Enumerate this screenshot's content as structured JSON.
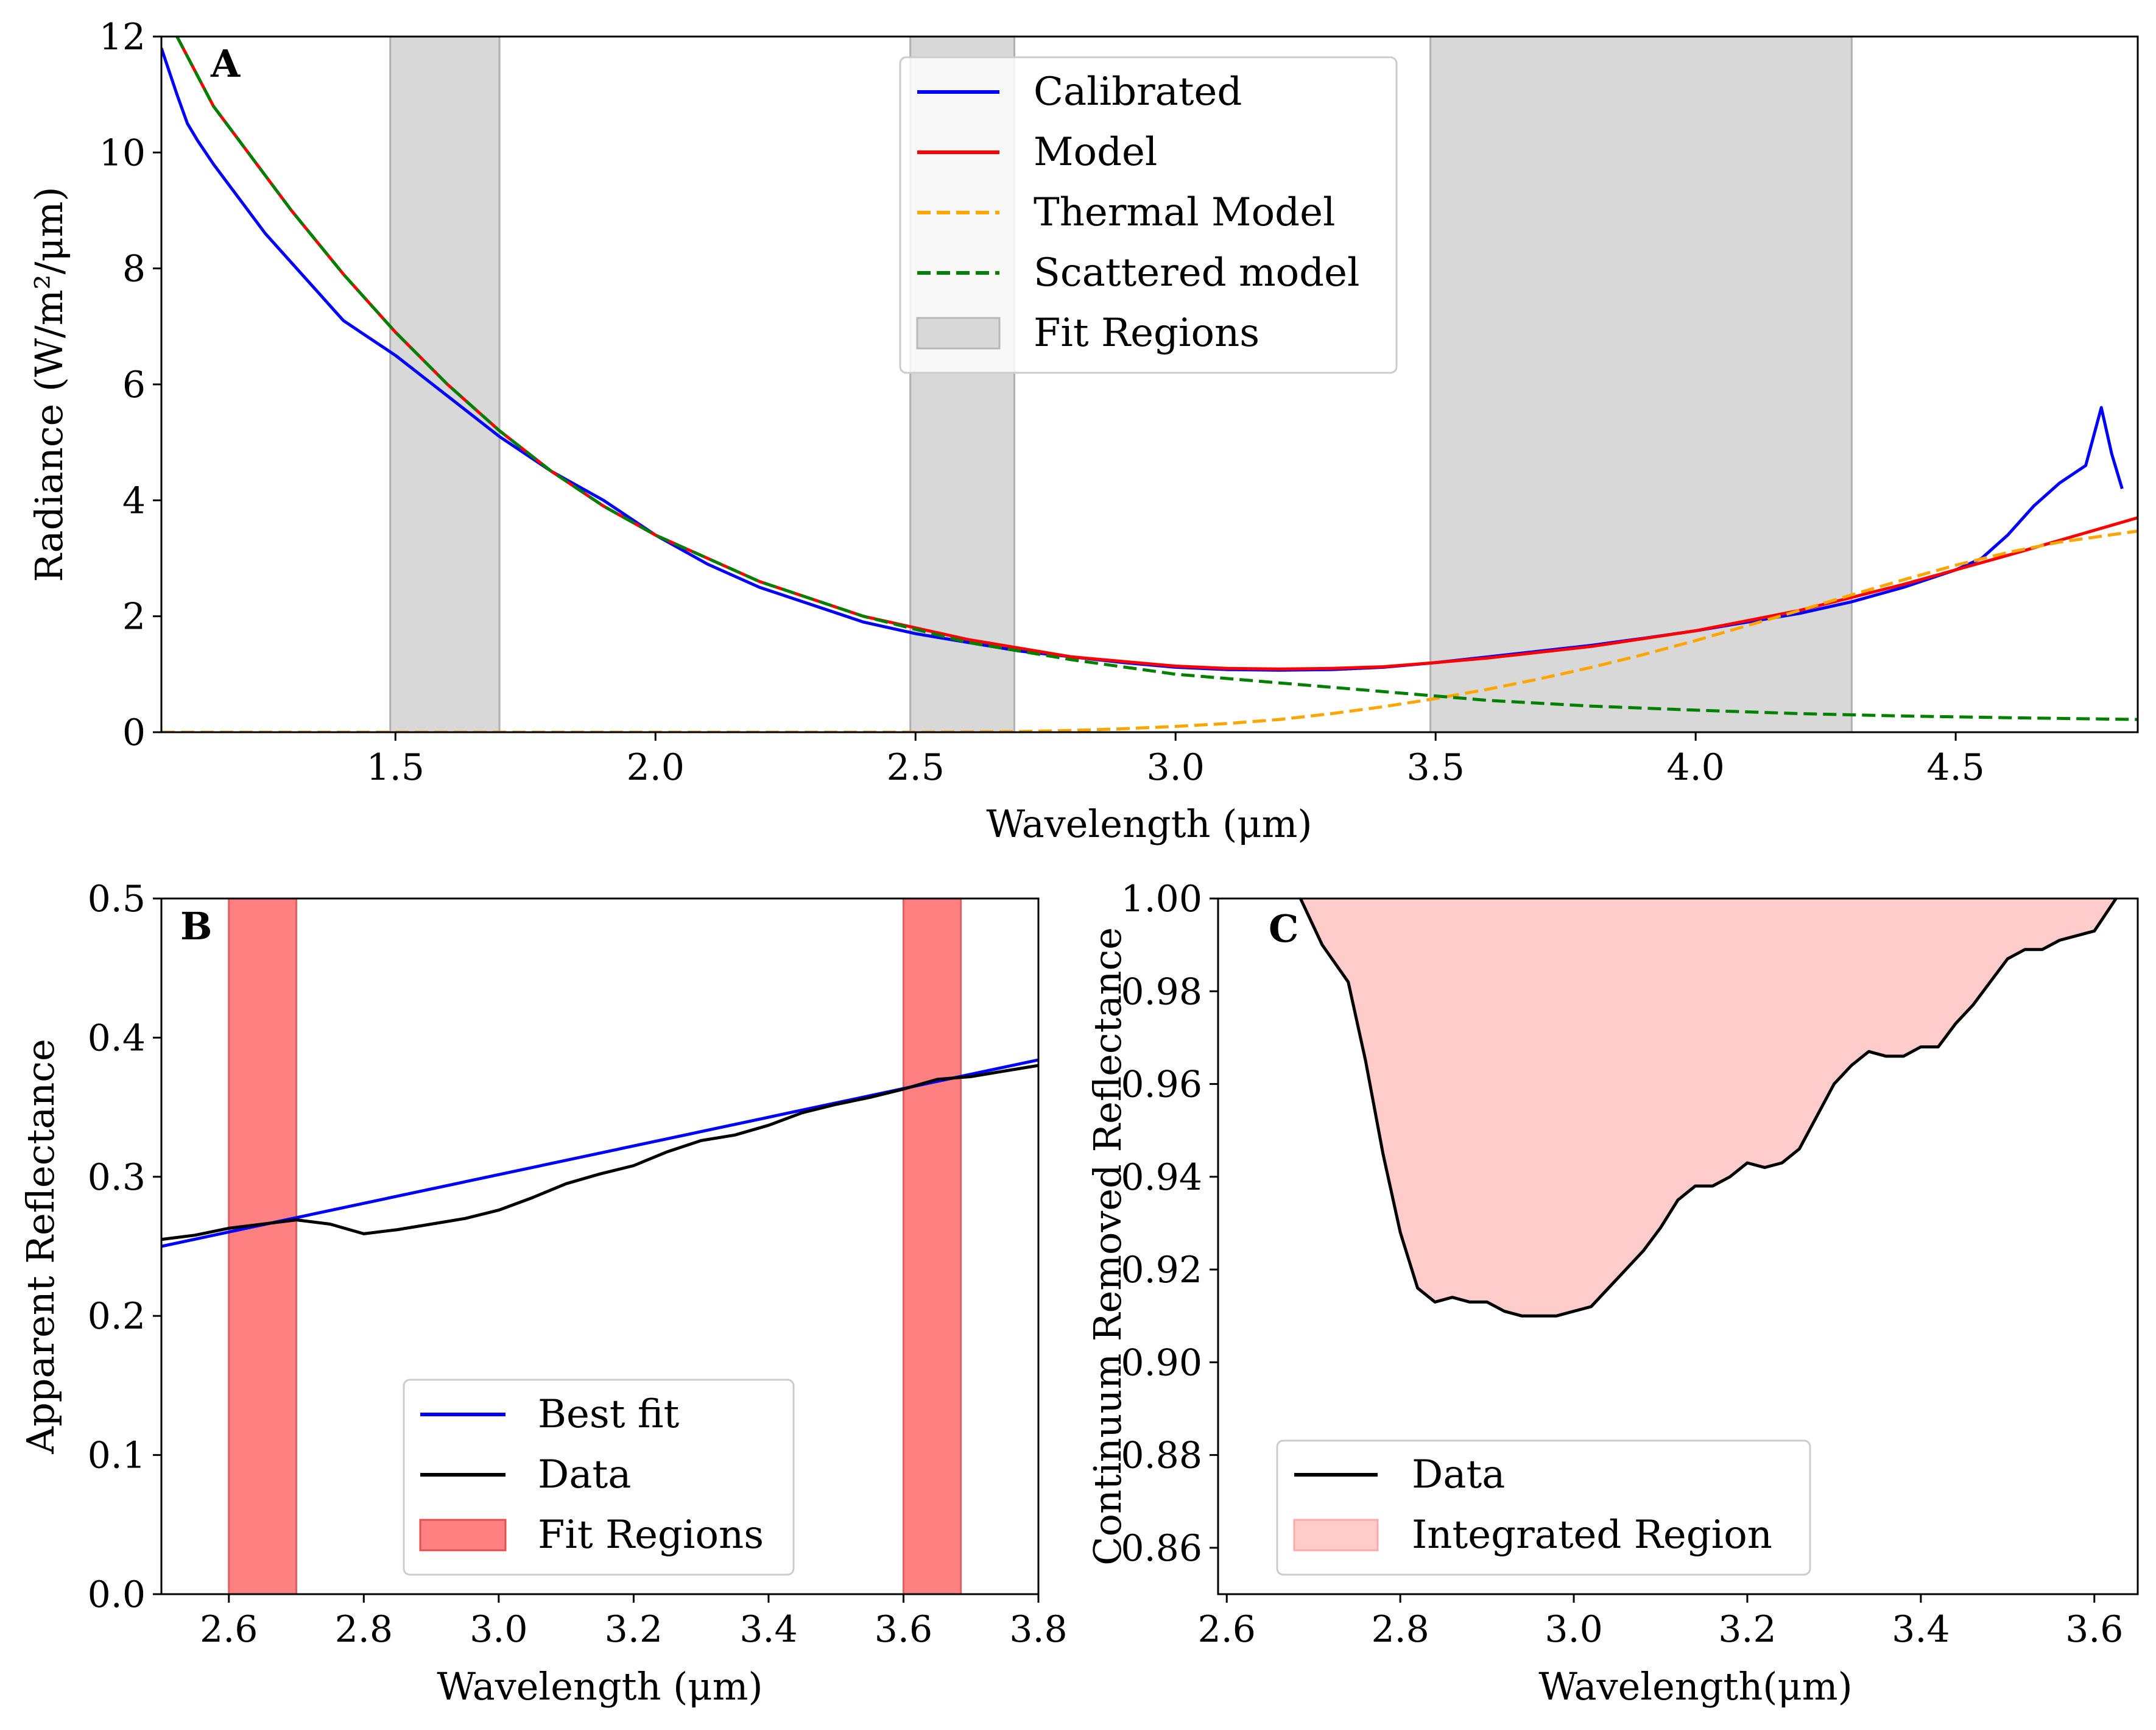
{
  "chart_data": [
    {
      "panel_label": "A",
      "type": "line",
      "xlabel": "Wavelength (μm)",
      "ylabel": "Radiance (W/m²/μm)",
      "xlim": [
        1.05,
        4.85
      ],
      "ylim": [
        0,
        12
      ],
      "xticks": [
        1.5,
        2.0,
        2.5,
        3.0,
        3.5,
        4.0,
        4.5
      ],
      "xtick_labels": [
        "1.5",
        "2.0",
        "2.5",
        "3.0",
        "3.5",
        "4.0",
        "4.5"
      ],
      "yticks": [
        0,
        2,
        4,
        6,
        8,
        10,
        12
      ],
      "ytick_labels": [
        "0",
        "2",
        "4",
        "6",
        "8",
        "10",
        "12"
      ],
      "legend_position": "top-center",
      "legend": [
        "Calibrated",
        "Model",
        "Thermal Model",
        "Scattered model",
        "Fit Regions"
      ],
      "fit_regions": [
        [
          1.49,
          1.7
        ],
        [
          2.49,
          2.69
        ],
        [
          3.49,
          4.3
        ]
      ],
      "series": [
        {
          "name": "Calibrated",
          "color": "#0000ff",
          "style": "solid",
          "x": [
            1.05,
            1.08,
            1.1,
            1.12,
            1.15,
            1.2,
            1.25,
            1.3,
            1.35,
            1.38,
            1.4,
            1.45,
            1.5,
            1.6,
            1.7,
            1.8,
            1.9,
            2.0,
            2.1,
            2.2,
            2.3,
            2.4,
            2.5,
            2.6,
            2.7,
            2.8,
            2.9,
            3.0,
            3.1,
            3.2,
            3.3,
            3.4,
            3.5,
            3.6,
            3.7,
            3.8,
            3.9,
            4.0,
            4.1,
            4.2,
            4.3,
            4.4,
            4.5,
            4.55,
            4.6,
            4.65,
            4.7,
            4.75,
            4.78,
            4.8,
            4.82
          ],
          "y": [
            11.8,
            11.0,
            10.5,
            10.2,
            9.8,
            9.2,
            8.6,
            8.1,
            7.6,
            7.3,
            7.1,
            6.8,
            6.5,
            5.8,
            5.1,
            4.5,
            4.0,
            3.4,
            2.9,
            2.5,
            2.2,
            1.9,
            1.7,
            1.55,
            1.4,
            1.3,
            1.2,
            1.12,
            1.08,
            1.07,
            1.08,
            1.12,
            1.2,
            1.3,
            1.4,
            1.5,
            1.62,
            1.75,
            1.9,
            2.05,
            2.25,
            2.5,
            2.8,
            3.0,
            3.4,
            3.9,
            4.3,
            4.6,
            5.6,
            4.8,
            4.2
          ]
        },
        {
          "name": "Model",
          "color": "#ff0000",
          "style": "solid",
          "x": [
            1.08,
            1.15,
            1.2,
            1.3,
            1.4,
            1.5,
            1.6,
            1.7,
            1.8,
            1.9,
            2.0,
            2.2,
            2.4,
            2.6,
            2.8,
            3.0,
            3.1,
            3.2,
            3.3,
            3.4,
            3.5,
            3.6,
            3.8,
            4.0,
            4.2,
            4.4,
            4.6,
            4.85
          ],
          "y": [
            12.0,
            10.8,
            10.2,
            9.0,
            7.9,
            6.9,
            6.0,
            5.2,
            4.5,
            3.9,
            3.4,
            2.6,
            2.0,
            1.6,
            1.3,
            1.14,
            1.1,
            1.09,
            1.1,
            1.13,
            1.2,
            1.28,
            1.48,
            1.75,
            2.1,
            2.55,
            3.05,
            3.7
          ]
        },
        {
          "name": "Thermal Model",
          "color": "#ffa500",
          "style": "dashed",
          "x": [
            1.05,
            2.5,
            2.7,
            2.8,
            2.9,
            3.0,
            3.1,
            3.2,
            3.3,
            3.4,
            3.5,
            3.6,
            3.7,
            3.8,
            3.9,
            4.0,
            4.1,
            4.2,
            4.3,
            4.4,
            4.5,
            4.6,
            4.7,
            4.85
          ],
          "y": [
            0,
            0,
            0.01,
            0.03,
            0.06,
            0.1,
            0.15,
            0.22,
            0.32,
            0.44,
            0.58,
            0.74,
            0.92,
            1.12,
            1.34,
            1.58,
            1.84,
            2.1,
            2.37,
            2.63,
            2.88,
            3.1,
            3.28,
            3.47
          ]
        },
        {
          "name": "Scattered model",
          "color": "#008000",
          "style": "dashed",
          "x": [
            1.08,
            1.15,
            1.2,
            1.3,
            1.4,
            1.5,
            1.6,
            1.7,
            1.8,
            1.9,
            2.0,
            2.2,
            2.4,
            2.6,
            2.8,
            3.0,
            3.2,
            3.4,
            3.6,
            3.8,
            4.0,
            4.2,
            4.4,
            4.6,
            4.85
          ],
          "y": [
            12.0,
            10.8,
            10.2,
            9.0,
            7.9,
            6.9,
            6.0,
            5.2,
            4.5,
            3.9,
            3.4,
            2.6,
            2.0,
            1.55,
            1.25,
            1.0,
            0.85,
            0.7,
            0.55,
            0.45,
            0.38,
            0.32,
            0.28,
            0.25,
            0.22
          ]
        }
      ]
    },
    {
      "panel_label": "B",
      "type": "line",
      "xlabel": "Wavelength (μm)",
      "ylabel": "Apparent Reflectance",
      "xlim": [
        2.5,
        3.8
      ],
      "ylim": [
        0.0,
        0.5
      ],
      "xticks": [
        2.6,
        2.8,
        3.0,
        3.2,
        3.4,
        3.6,
        3.8
      ],
      "xtick_labels": [
        "2.6",
        "2.8",
        "3.0",
        "3.2",
        "3.4",
        "3.6",
        "3.8"
      ],
      "yticks": [
        0.0,
        0.1,
        0.2,
        0.3,
        0.4,
        0.5
      ],
      "ytick_labels": [
        "0.0",
        "0.1",
        "0.2",
        "0.3",
        "0.4",
        "0.5"
      ],
      "legend_position": "lower-center",
      "legend": [
        "Best fit",
        "Data",
        "Fit Regions"
      ],
      "fit_regions": [
        [
          2.6,
          2.7
        ],
        [
          3.6,
          3.685
        ]
      ],
      "series": [
        {
          "name": "Best fit",
          "color": "#0000ff",
          "style": "solid",
          "x": [
            2.5,
            3.8
          ],
          "y": [
            0.25,
            0.384
          ]
        },
        {
          "name": "Data",
          "color": "#000000",
          "style": "solid",
          "x": [
            2.5,
            2.55,
            2.6,
            2.65,
            2.7,
            2.75,
            2.8,
            2.85,
            2.9,
            2.95,
            3.0,
            3.05,
            3.1,
            3.15,
            3.2,
            3.25,
            3.3,
            3.35,
            3.4,
            3.45,
            3.5,
            3.55,
            3.6,
            3.65,
            3.7,
            3.75,
            3.8
          ],
          "y": [
            0.255,
            0.258,
            0.263,
            0.266,
            0.269,
            0.266,
            0.259,
            0.262,
            0.266,
            0.27,
            0.276,
            0.285,
            0.295,
            0.302,
            0.308,
            0.318,
            0.326,
            0.33,
            0.337,
            0.346,
            0.352,
            0.357,
            0.363,
            0.37,
            0.372,
            0.376,
            0.38
          ]
        }
      ]
    },
    {
      "panel_label": "C",
      "type": "area",
      "xlabel": "Wavelength(μm)",
      "ylabel": "Continuum Removed Reflectance",
      "xlim": [
        2.59,
        3.65
      ],
      "ylim": [
        0.85,
        1.0
      ],
      "xticks": [
        2.6,
        2.8,
        3.0,
        3.2,
        3.4,
        3.6
      ],
      "xtick_labels": [
        "2.6",
        "2.8",
        "3.0",
        "3.2",
        "3.4",
        "3.6"
      ],
      "yticks": [
        0.86,
        0.88,
        0.9,
        0.92,
        0.94,
        0.96,
        0.98,
        1.0
      ],
      "ytick_labels": [
        "0.86",
        "0.88",
        "0.90",
        "0.92",
        "0.94",
        "0.96",
        "0.98",
        "1.00"
      ],
      "legend_position": "lower-left",
      "legend": [
        "Data",
        "Integrated Region"
      ],
      "series": [
        {
          "name": "Data",
          "color": "#000000",
          "style": "solid",
          "x": [
            2.685,
            2.71,
            2.74,
            2.76,
            2.78,
            2.8,
            2.82,
            2.84,
            2.86,
            2.88,
            2.9,
            2.92,
            2.94,
            2.96,
            2.98,
            3.0,
            3.02,
            3.04,
            3.06,
            3.08,
            3.1,
            3.12,
            3.14,
            3.16,
            3.18,
            3.2,
            3.22,
            3.24,
            3.26,
            3.28,
            3.3,
            3.32,
            3.34,
            3.36,
            3.38,
            3.4,
            3.42,
            3.44,
            3.46,
            3.48,
            3.5,
            3.52,
            3.54,
            3.56,
            3.58,
            3.6,
            3.625
          ],
          "y": [
            1.0,
            0.99,
            0.982,
            0.965,
            0.945,
            0.928,
            0.916,
            0.913,
            0.914,
            0.913,
            0.913,
            0.911,
            0.91,
            0.91,
            0.91,
            0.911,
            0.912,
            0.916,
            0.92,
            0.924,
            0.929,
            0.935,
            0.938,
            0.938,
            0.94,
            0.943,
            0.942,
            0.943,
            0.946,
            0.953,
            0.96,
            0.964,
            0.967,
            0.966,
            0.966,
            0.968,
            0.968,
            0.973,
            0.977,
            0.982,
            0.987,
            0.989,
            0.989,
            0.991,
            0.992,
            0.993,
            1.0
          ]
        }
      ],
      "fill_color": "#ffc0c0"
    }
  ],
  "colors": {
    "calibrated": "#0000ff",
    "model": "#ff0000",
    "thermal": "#ffa500",
    "scattered": "#008000",
    "fit_region_a": "#d8d8d8",
    "fit_region_b": "#ff8080",
    "integrated": "#ffcccc"
  }
}
